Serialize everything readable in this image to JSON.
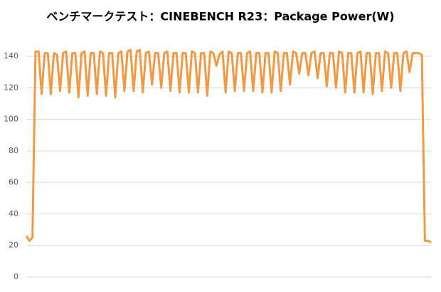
{
  "chart_data": {
    "type": "line",
    "title": "ベンチマークテスト：CINEBENCH R23：Package Power(W)",
    "values": [
      26,
      23,
      25,
      143,
      143,
      116,
      142,
      142,
      116,
      142,
      141,
      118,
      142,
      143,
      117,
      142,
      142,
      114,
      142,
      143,
      115,
      142,
      142,
      116,
      143,
      142,
      115,
      142,
      142,
      114,
      142,
      143,
      118,
      143,
      144,
      118,
      143,
      144,
      117,
      142,
      143,
      122,
      142,
      142,
      120,
      142,
      143,
      118,
      142,
      142,
      117,
      142,
      142,
      117,
      143,
      142,
      117,
      142,
      142,
      115,
      143,
      142,
      134,
      141,
      143,
      117,
      143,
      142,
      118,
      142,
      142,
      118,
      142,
      143,
      118,
      142,
      142,
      117,
      142,
      142,
      117,
      143,
      142,
      118,
      142,
      142,
      122,
      143,
      142,
      129,
      142,
      142,
      128,
      142,
      143,
      126,
      142,
      142,
      121,
      142,
      142,
      120,
      143,
      142,
      117,
      142,
      142,
      117,
      142,
      143,
      117,
      142,
      142,
      116,
      142,
      142,
      118,
      143,
      142,
      120,
      142,
      142,
      118,
      142,
      143,
      130,
      142,
      142,
      142,
      141,
      23,
      23,
      22
    ],
    "color": "#f09a46",
    "ylim": [
      0,
      140
    ],
    "yticks": [
      0,
      20,
      40,
      60,
      80,
      100,
      120,
      140
    ],
    "grid": true
  }
}
